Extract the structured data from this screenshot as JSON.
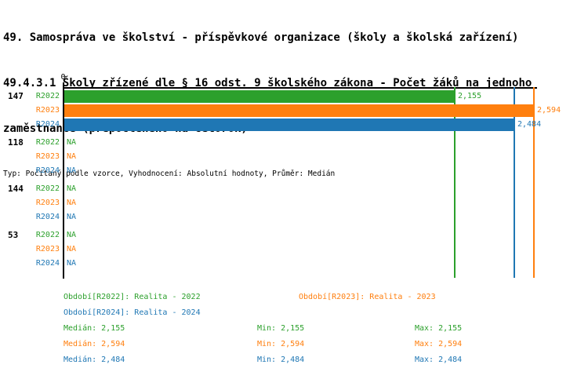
{
  "title": {
    "line1": "49. Samospráva ve školství - příspěvkové organizace (školy a školská zařízení)",
    "line2": "49.4.3.1 Školy zřízené dle § 16 odst. 9 školského zákona - Počet žáků na jednoho",
    "line3": "zaměstnance (přepočteného na celorok)",
    "subtitle": "Typ: Počítaný podle vzorce, Vyhodnocení: Absolutní hodnoty, Průměr: Medián"
  },
  "colors": {
    "R2022": "#2ca02c",
    "R2023": "#ff7f0e",
    "R2024": "#1f77b4",
    "axis": "#000000"
  },
  "chart_data": {
    "type": "bar",
    "orientation": "horizontal",
    "title": "49.4.3.1 Školy zřízené dle § 16 odst. 9 školského zákona - Počet žáků na jednoho zaměstnance (přepočteného na celorok)",
    "axis": {
      "zero_label": "0",
      "x_min": 0,
      "x_max": 2615,
      "grid": false
    },
    "series_labels": [
      "R2022",
      "R2023",
      "R2024"
    ],
    "groups": [
      {
        "label": "147",
        "rows": [
          {
            "series": "R2022",
            "value": 2155,
            "display": "2,155"
          },
          {
            "series": "R2023",
            "value": 2594,
            "display": "2,594"
          },
          {
            "series": "R2024",
            "value": 2484,
            "display": "2,484"
          }
        ]
      },
      {
        "label": "118",
        "rows": [
          {
            "series": "R2022",
            "value": null,
            "display": "NA"
          },
          {
            "series": "R2023",
            "value": null,
            "display": "NA"
          },
          {
            "series": "R2024",
            "value": null,
            "display": "NA"
          }
        ]
      },
      {
        "label": "144",
        "rows": [
          {
            "series": "R2022",
            "value": null,
            "display": "NA"
          },
          {
            "series": "R2023",
            "value": null,
            "display": "NA"
          },
          {
            "series": "R2024",
            "value": null,
            "display": "NA"
          }
        ]
      },
      {
        "label": "53",
        "rows": [
          {
            "series": "R2022",
            "value": null,
            "display": "NA"
          },
          {
            "series": "R2023",
            "value": null,
            "display": "NA"
          },
          {
            "series": "R2024",
            "value": null,
            "display": "NA"
          }
        ]
      }
    ],
    "median_lines": [
      {
        "series": "R2022",
        "value": 2155
      },
      {
        "series": "R2023",
        "value": 2594
      },
      {
        "series": "R2024",
        "value": 2484
      }
    ]
  },
  "legend": {
    "period_labels": [
      {
        "series": "R2022",
        "text": "Období[R2022]: Realita - 2022"
      },
      {
        "series": "R2023",
        "text": "Období[R2023]: Realita - 2023"
      },
      {
        "series": "R2024",
        "text": "Období[R2024]: Realita - 2024"
      }
    ],
    "stats_rows": [
      {
        "series": "R2022",
        "median": "Medián: 2,155",
        "min": "Min: 2,155",
        "max": "Max: 2,155"
      },
      {
        "series": "R2023",
        "median": "Medián: 2,594",
        "min": "Min: 2,594",
        "max": "Max: 2,594"
      },
      {
        "series": "R2024",
        "median": "Medián: 2,484",
        "min": "Min: 2,484",
        "max": "Max: 2,484"
      }
    ]
  }
}
